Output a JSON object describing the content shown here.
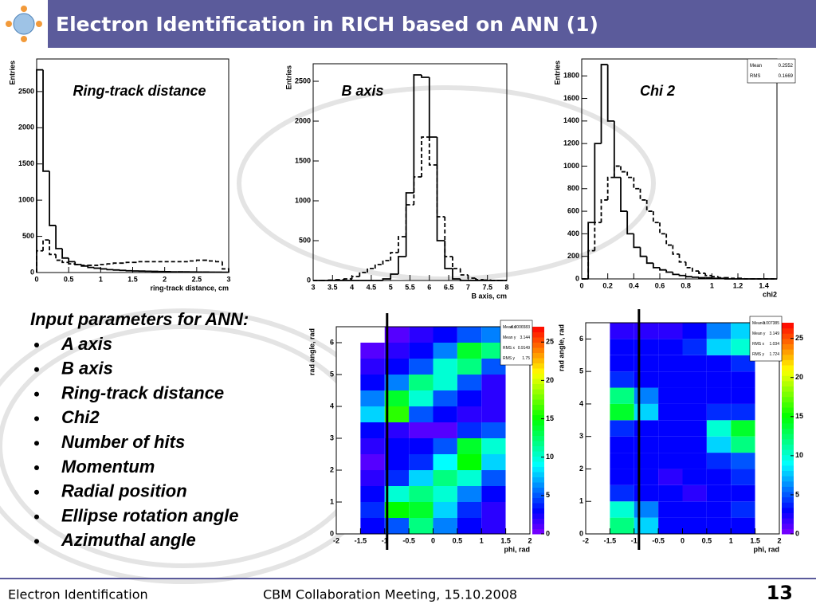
{
  "header": {
    "title": "Electron Identification in RICH based on ANN (1)"
  },
  "input_list": {
    "title": "Input parameters for ANN:",
    "items": [
      "A axis",
      "B axis",
      "Ring-track distance",
      "Chi2",
      "Number of hits",
      "Momentum",
      "Radial position",
      "Ellipse rotation angle",
      "Azimuthal angle"
    ]
  },
  "footer": {
    "left": "Electron Identification",
    "center": "CBM Collaboration Meeting, 15.10.2008",
    "page": "13"
  },
  "chart_data": [
    {
      "type": "histogram",
      "title": "Ring-track distance",
      "x_label": "ring-track distance, cm",
      "y_label": "Entries",
      "bins": [
        0,
        0.1,
        0.2,
        0.3,
        0.4,
        0.5,
        0.6,
        0.7,
        0.8,
        0.9,
        1,
        1.1,
        1.2,
        1.3,
        1.4,
        1.5,
        1.6,
        1.7,
        1.8,
        1.9,
        2,
        2.1,
        2.2,
        2.3,
        2.4,
        2.5,
        2.6,
        2.7,
        2.8,
        2.9,
        3
      ],
      "series": [
        {
          "style": "solid",
          "color": "#000000",
          "values": [
            2800,
            1400,
            650,
            330,
            200,
            150,
            110,
            90,
            70,
            60,
            50,
            40,
            35,
            30,
            25,
            22,
            20,
            18,
            16,
            14,
            12,
            10,
            10,
            9,
            8,
            7,
            6,
            5,
            5,
            4
          ]
        },
        {
          "style": "dashed",
          "color": "#000000",
          "values": [
            300,
            450,
            250,
            170,
            140,
            120,
            110,
            100,
            100,
            100,
            110,
            120,
            130,
            130,
            140,
            140,
            150,
            150,
            150,
            150,
            150,
            150,
            150,
            150,
            160,
            170,
            170,
            160,
            150,
            50
          ]
        }
      ],
      "xlim": [
        0,
        3
      ],
      "xticks": [
        0,
        0.5,
        1,
        1.5,
        2,
        2.5,
        3
      ],
      "ylim": [
        0,
        2950
      ],
      "yticks": [
        0,
        500,
        1000,
        1500,
        2000,
        2500
      ]
    },
    {
      "type": "histogram",
      "title": "B axis",
      "x_label": "B axis, cm",
      "y_label": "Entries",
      "bins": [
        3,
        3.2,
        3.4,
        3.6,
        3.8,
        4,
        4.2,
        4.4,
        4.6,
        4.8,
        5,
        5.2,
        5.4,
        5.6,
        5.8,
        6,
        6.2,
        6.4,
        6.6,
        6.8,
        7,
        7.2,
        7.4,
        7.6,
        7.8,
        8
      ],
      "series": [
        {
          "style": "solid",
          "color": "#000000",
          "values": [
            0,
            0,
            0,
            0,
            0,
            0,
            0,
            0,
            0,
            20,
            80,
            300,
            1100,
            2580,
            2550,
            1800,
            500,
            150,
            20,
            0,
            0,
            0,
            0,
            0,
            0
          ]
        },
        {
          "style": "dashed",
          "color": "#000000",
          "values": [
            0,
            0,
            5,
            10,
            20,
            50,
            100,
            150,
            200,
            250,
            350,
            550,
            950,
            1300,
            1800,
            1450,
            800,
            300,
            150,
            70,
            30,
            10,
            5,
            0,
            0
          ]
        }
      ],
      "xlim": [
        3,
        8
      ],
      "xticks": [
        3,
        3.5,
        4,
        4.5,
        5,
        5.5,
        6,
        6.5,
        7,
        7.5,
        8
      ],
      "ylim": [
        0,
        2720
      ],
      "yticks": [
        0,
        500,
        1000,
        1500,
        2000,
        2500
      ]
    },
    {
      "type": "histogram",
      "title": "Chi 2",
      "x_label": "chi2",
      "y_label": "Entries",
      "bins": [
        0,
        0.05,
        0.1,
        0.15,
        0.2,
        0.25,
        0.3,
        0.35,
        0.4,
        0.45,
        0.5,
        0.55,
        0.6,
        0.65,
        0.7,
        0.75,
        0.8,
        0.85,
        0.9,
        0.95,
        1,
        1.05,
        1.1,
        1.15,
        1.2,
        1.25,
        1.3,
        1.35,
        1.4,
        1.45,
        1.5
      ],
      "series": [
        {
          "style": "solid",
          "color": "#000000",
          "values": [
            0,
            500,
            1200,
            1900,
            1400,
            900,
            600,
            400,
            280,
            200,
            140,
            100,
            80,
            60,
            40,
            30,
            20,
            15,
            10,
            10,
            5,
            5,
            0,
            0,
            0,
            0,
            0,
            0,
            0,
            0
          ]
        },
        {
          "style": "dashed",
          "color": "#000000",
          "values": [
            0,
            250,
            500,
            700,
            900,
            1000,
            950,
            900,
            800,
            700,
            600,
            500,
            400,
            300,
            220,
            150,
            100,
            70,
            50,
            30,
            20,
            10,
            10,
            5,
            5,
            0,
            0,
            0,
            0,
            0
          ]
        }
      ],
      "stats": [
        {
          "label": "Mean",
          "value": 0.2552
        },
        {
          "label": "RMS",
          "value": 0.1669
        }
      ],
      "xlim": [
        0,
        1.5
      ],
      "xticks": [
        0,
        0.2,
        0.4,
        0.6,
        0.8,
        1,
        1.2,
        1.4
      ],
      "ylim": [
        0,
        1950
      ],
      "yticks": [
        0,
        200,
        400,
        600,
        800,
        1000,
        1200,
        1400,
        1600,
        1800
      ]
    },
    {
      "type": "heatmap",
      "x_label": "phi, rad",
      "y_label": "rad angle, rad",
      "x_bins": [
        -2,
        -1.5,
        -1,
        -0.5,
        0,
        0.5,
        1,
        1.5,
        2
      ],
      "y_bins": [
        0,
        0.5,
        1,
        1.5,
        2,
        2.5,
        3,
        3.5,
        4,
        4.5,
        5,
        5.5,
        6,
        6.5
      ],
      "z": [
        [
          0,
          3,
          5,
          12,
          6,
          3,
          2,
          0
        ],
        [
          0,
          4,
          15,
          14,
          8,
          4,
          2,
          0
        ],
        [
          0,
          3,
          10,
          12,
          10,
          6,
          3,
          0
        ],
        [
          0,
          2,
          4,
          8,
          12,
          10,
          5,
          0
        ],
        [
          0,
          1,
          3,
          4,
          9,
          15,
          8,
          0
        ],
        [
          0,
          2,
          3,
          3,
          5,
          14,
          10,
          0
        ],
        [
          0,
          3,
          2,
          1,
          1,
          4,
          5,
          0
        ],
        [
          0,
          8,
          16,
          5,
          3,
          2,
          2,
          0
        ],
        [
          0,
          6,
          14,
          10,
          5,
          3,
          2,
          0
        ],
        [
          0,
          3,
          6,
          12,
          10,
          5,
          2,
          0
        ],
        [
          0,
          2,
          3,
          5,
          10,
          12,
          5,
          0
        ],
        [
          0,
          1,
          2,
          3,
          6,
          14,
          12,
          0
        ],
        [
          0,
          0,
          1,
          2,
          3,
          5,
          6,
          0
        ]
      ],
      "stats": [
        {
          "label": "Mean x",
          "value": -0.0006583
        },
        {
          "label": "Mean y",
          "value": 3.144
        },
        {
          "label": "RMS x",
          "value": 0.9149
        },
        {
          "label": "RMS y",
          "value": 1.75
        }
      ],
      "cut_line": -0.95,
      "xlim": [
        -2,
        2
      ],
      "xticks": [
        -2,
        -1.5,
        -1,
        -0.5,
        0,
        0.5,
        1,
        1.5,
        2
      ],
      "ylim": [
        0,
        6.5
      ],
      "yticks": [
        0,
        1,
        2,
        3,
        4,
        5,
        6
      ],
      "zlim": [
        0,
        27
      ],
      "zticks": [
        0,
        5,
        10,
        15,
        20,
        25
      ]
    },
    {
      "type": "heatmap",
      "x_label": "phi, rad",
      "y_label": "rad angle, rad",
      "x_bins": [
        -2,
        -1.5,
        -1,
        -0.5,
        0,
        0.5,
        1,
        1.5,
        2
      ],
      "y_bins": [
        0,
        0.5,
        1,
        1.5,
        2,
        2.5,
        3,
        3.5,
        4,
        4.5,
        5,
        5.5,
        6,
        6.5
      ],
      "z": [
        [
          0,
          12,
          8,
          3,
          3,
          3,
          3,
          0
        ],
        [
          0,
          10,
          6,
          3,
          3,
          3,
          4,
          0
        ],
        [
          0,
          4,
          3,
          3,
          2,
          3,
          3,
          0
        ],
        [
          0,
          3,
          3,
          2,
          3,
          3,
          4,
          0
        ],
        [
          0,
          3,
          3,
          3,
          3,
          4,
          5,
          0
        ],
        [
          0,
          3,
          3,
          3,
          3,
          8,
          12,
          0
        ],
        [
          0,
          4,
          3,
          3,
          3,
          10,
          14,
          0
        ],
        [
          0,
          14,
          8,
          3,
          3,
          4,
          4,
          0
        ],
        [
          0,
          12,
          6,
          3,
          3,
          3,
          3,
          0
        ],
        [
          0,
          4,
          3,
          3,
          3,
          3,
          3,
          0
        ],
        [
          0,
          3,
          3,
          3,
          3,
          3,
          4,
          0
        ],
        [
          0,
          3,
          3,
          3,
          4,
          8,
          10,
          0
        ],
        [
          0,
          2,
          2,
          2,
          3,
          6,
          8,
          0
        ]
      ],
      "stats": [
        {
          "label": "Mean x",
          "value": -0.007385
        },
        {
          "label": "Mean y",
          "value": 3.149
        },
        {
          "label": "RMS x",
          "value": 1.034
        },
        {
          "label": "RMS y",
          "value": 1.724
        }
      ],
      "cut_line": -0.9,
      "xlim": [
        -2,
        2
      ],
      "xticks": [
        -2,
        -1.5,
        -1,
        -0.5,
        0,
        0.5,
        1,
        1.5,
        2
      ],
      "ylim": [
        0,
        6.5
      ],
      "yticks": [
        0,
        1,
        2,
        3,
        4,
        5,
        6
      ],
      "zlim": [
        0,
        27
      ],
      "zticks": [
        0,
        5,
        10,
        15,
        20,
        25
      ]
    }
  ]
}
